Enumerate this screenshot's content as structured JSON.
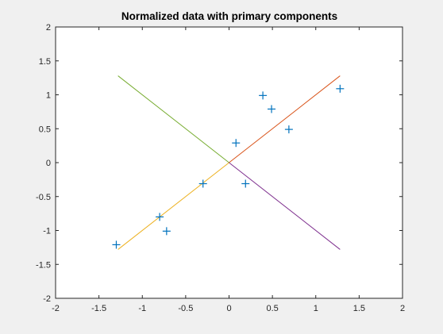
{
  "chart_data": {
    "type": "scatter",
    "title": "Normalized data with primary components",
    "xlabel": "",
    "ylabel": "",
    "xlim": [
      -2,
      2
    ],
    "ylim": [
      -2,
      2
    ],
    "x_ticks": [
      -2,
      -1.5,
      -1,
      -0.5,
      0,
      0.5,
      1,
      1.5,
      2
    ],
    "y_ticks": [
      -2,
      -1.5,
      -1,
      -0.5,
      0,
      0.5,
      1,
      1.5,
      2
    ],
    "x_tick_labels": [
      "-2",
      "-1.5",
      "-1",
      "-0.5",
      "0",
      "0.5",
      "1",
      "1.5",
      "2"
    ],
    "y_tick_labels": [
      "-2",
      "-1.5",
      "-1",
      "-0.5",
      "0",
      "0.5",
      "1",
      "1.5",
      "2"
    ],
    "grid": false,
    "background": "#f0f0f0",
    "axes_color": "#262626",
    "points": {
      "marker": "+",
      "color": "#0072bd",
      "x": [
        -1.3,
        -0.8,
        -0.72,
        -0.3,
        0.08,
        0.19,
        0.39,
        0.49,
        0.69,
        1.28
      ],
      "y": [
        -1.21,
        -0.8,
        -1.01,
        -0.31,
        0.29,
        -0.31,
        0.99,
        0.79,
        0.49,
        1.09
      ]
    },
    "lines": [
      {
        "color": "#d95319",
        "x": [
          0,
          1.28
        ],
        "y": [
          0,
          1.28
        ]
      },
      {
        "color": "#edb120",
        "x": [
          0,
          -1.28
        ],
        "y": [
          0,
          -1.28
        ]
      },
      {
        "color": "#7e2f8e",
        "x": [
          0,
          1.28
        ],
        "y": [
          0,
          -1.28
        ]
      },
      {
        "color": "#77ac30",
        "x": [
          0,
          -1.28
        ],
        "y": [
          0,
          1.28
        ]
      }
    ]
  }
}
